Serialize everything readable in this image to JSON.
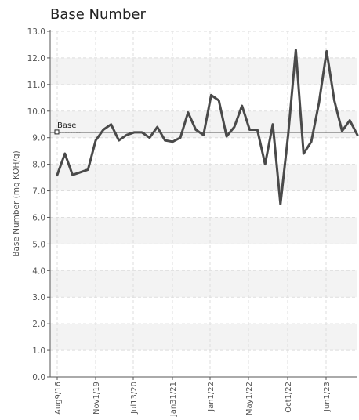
{
  "chart_data": {
    "type": "line",
    "title": "Base Number",
    "ylabel": "Base Number (mg KOH/g)",
    "xlabel": "",
    "ylim": [
      0,
      13
    ],
    "yticks": [
      "0.0",
      "1.0",
      "2.0",
      "3.0",
      "4.0",
      "5.0",
      "6.0",
      "7.0",
      "8.0",
      "9.0",
      "10.0",
      "11.0",
      "12.0",
      "13.0"
    ],
    "x_tick_labels": [
      "Aug9/16",
      "Nov1/19",
      "Jul13/20",
      "Jan31/21",
      "Jan1/22",
      "May1/22",
      "Oct1/22",
      "Jun1/23"
    ],
    "grid": true,
    "reference_line": {
      "name": "Base",
      "value": 9.2
    },
    "series": [
      {
        "values": [
          7.6,
          8.4,
          7.6,
          7.7,
          7.8,
          8.9,
          9.3,
          9.5,
          8.9,
          9.1,
          9.2,
          9.2,
          9.0,
          9.4,
          8.9,
          8.85,
          9.0,
          9.95,
          9.3,
          9.1,
          10.6,
          10.4,
          9.05,
          9.4,
          10.2,
          9.3,
          9.3,
          8.0,
          9.5,
          6.5,
          9.1,
          12.3,
          8.4,
          8.85,
          10.3,
          12.25,
          10.4,
          9.25,
          9.65,
          9.1
        ]
      }
    ],
    "colors": {
      "line": "#4a4a4a",
      "reference": "#555555",
      "band": "#f3f3f3",
      "grid": "#dddddd"
    }
  }
}
